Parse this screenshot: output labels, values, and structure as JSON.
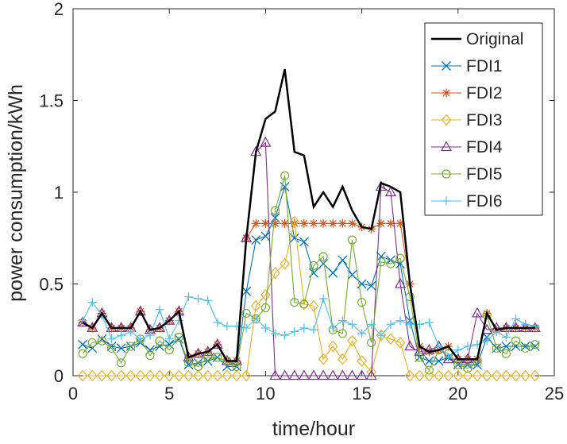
{
  "chart_data": {
    "type": "line",
    "title": "",
    "xlabel": "time/hour",
    "ylabel": "power consumption/kWh",
    "xlim": [
      0,
      25
    ],
    "ylim": [
      0,
      2
    ],
    "xticks": [
      0,
      5,
      10,
      15,
      20,
      25
    ],
    "yticks": [
      0,
      0.5,
      1,
      1.5,
      2
    ],
    "xtick_labels": [
      "0",
      "5",
      "10",
      "15",
      "20",
      "25"
    ],
    "ytick_labels": [
      "0",
      "0.5",
      "1",
      "1.5",
      "2"
    ],
    "grid": false,
    "legend_position": "top-right",
    "x": [
      0.5,
      1.0,
      1.5,
      2.0,
      2.5,
      3.0,
      3.5,
      4.0,
      4.5,
      5.0,
      5.5,
      6.0,
      6.5,
      7.0,
      7.5,
      8.0,
      8.5,
      9.0,
      9.5,
      10.0,
      10.5,
      11.0,
      11.5,
      12.0,
      12.5,
      13.0,
      13.5,
      14.0,
      14.5,
      15.0,
      15.5,
      16.0,
      16.5,
      17.0,
      17.5,
      18.0,
      18.5,
      19.0,
      19.5,
      20.0,
      20.5,
      21.0,
      21.5,
      22.0,
      22.5,
      23.0,
      23.5,
      24.0
    ],
    "series": [
      {
        "name": "Original",
        "color": "#000000",
        "marker": "none",
        "values": [
          0.29,
          0.26,
          0.34,
          0.26,
          0.26,
          0.26,
          0.35,
          0.25,
          0.26,
          0.3,
          0.35,
          0.1,
          0.12,
          0.13,
          0.17,
          0.08,
          0.08,
          0.75,
          1.22,
          1.4,
          1.44,
          1.67,
          1.22,
          1.2,
          0.92,
          1.0,
          0.92,
          1.03,
          0.9,
          0.81,
          0.8,
          1.05,
          1.03,
          1.0,
          0.5,
          0.16,
          0.13,
          0.14,
          0.16,
          0.09,
          0.09,
          0.09,
          0.34,
          0.25,
          0.26,
          0.26,
          0.26,
          0.26
        ]
      },
      {
        "name": "FDI1",
        "color": "#0072BD",
        "marker": "x",
        "values": [
          0.17,
          0.15,
          0.2,
          0.16,
          0.15,
          0.16,
          0.18,
          0.14,
          0.16,
          0.17,
          0.2,
          0.06,
          0.07,
          0.08,
          0.1,
          0.05,
          0.05,
          0.46,
          0.74,
          0.76,
          0.86,
          1.03,
          0.75,
          0.73,
          0.56,
          0.61,
          0.56,
          0.63,
          0.55,
          0.5,
          0.49,
          0.65,
          0.63,
          0.61,
          0.3,
          0.1,
          0.08,
          0.08,
          0.1,
          0.06,
          0.06,
          0.06,
          0.21,
          0.15,
          0.16,
          0.16,
          0.16,
          0.16
        ]
      },
      {
        "name": "FDI2",
        "color": "#D95319",
        "marker": "*",
        "values": [
          0.29,
          0.26,
          0.34,
          0.26,
          0.26,
          0.26,
          0.35,
          0.25,
          0.26,
          0.3,
          0.35,
          0.1,
          0.12,
          0.13,
          0.17,
          0.08,
          0.08,
          0.75,
          0.83,
          0.83,
          0.83,
          0.83,
          0.83,
          0.83,
          0.83,
          0.83,
          0.83,
          0.83,
          0.83,
          0.81,
          0.8,
          0.83,
          0.83,
          0.83,
          0.5,
          0.16,
          0.13,
          0.14,
          0.16,
          0.09,
          0.09,
          0.09,
          0.34,
          0.25,
          0.26,
          0.26,
          0.26,
          0.26
        ]
      },
      {
        "name": "FDI3",
        "color": "#EDB120",
        "marker": "diamond",
        "values": [
          0,
          0,
          0,
          0,
          0,
          0,
          0,
          0,
          0,
          0,
          0,
          0,
          0,
          0,
          0,
          0,
          0,
          0,
          0.38,
          0.44,
          0.56,
          0.61,
          0.84,
          0.39,
          0.38,
          0.09,
          0.16,
          0.09,
          0.19,
          0.08,
          0.02,
          0.22,
          0.2,
          0.18,
          0,
          0,
          0,
          0,
          0,
          0,
          0,
          0,
          0,
          0,
          0,
          0,
          0,
          0
        ]
      },
      {
        "name": "FDI4",
        "color": "#7E2F8E",
        "marker": "triangle",
        "values": [
          0.29,
          0.26,
          0.34,
          0.26,
          0.26,
          0.26,
          0.35,
          0.25,
          0.26,
          0.3,
          0.35,
          0.1,
          0.12,
          0.13,
          0.17,
          0.08,
          0.08,
          0.75,
          1.22,
          1.27,
          0,
          0,
          0,
          0,
          0,
          0,
          0,
          0,
          0,
          0,
          0,
          1.03,
          1.0,
          0.5,
          0.16,
          0.13,
          0.14,
          0.16,
          0.09,
          0.09,
          0.09,
          0.34,
          0.25,
          0.26,
          0.26,
          0.26,
          0.26,
          0.26
        ]
      },
      {
        "name": "FDI5",
        "color": "#77AC30",
        "marker": "circle",
        "values": [
          0.12,
          0.18,
          0.19,
          0.15,
          0.07,
          0.16,
          0.2,
          0.11,
          0.19,
          0.14,
          0.21,
          0.07,
          0.05,
          0.1,
          0.1,
          0.08,
          0.05,
          0.34,
          0.31,
          0.37,
          0.9,
          1.09,
          0.4,
          0.39,
          0.6,
          0.65,
          0.25,
          0.23,
          0.74,
          0.4,
          0.18,
          0.62,
          0.61,
          0.64,
          0.43,
          0.1,
          0.03,
          0.14,
          0.12,
          0.06,
          0.04,
          0.07,
          0.33,
          0.15,
          0.12,
          0.19,
          0.15,
          0.17
        ]
      },
      {
        "name": "FDI6",
        "color": "#4DBEEE",
        "marker": "plus",
        "values": [
          0.3,
          0.4,
          0.33,
          0.2,
          0.22,
          0.24,
          0.2,
          0.22,
          0.36,
          0.2,
          0.3,
          0.43,
          0.42,
          0.41,
          0.29,
          0.27,
          0.27,
          0.26,
          0.31,
          0.26,
          0.23,
          0.22,
          0.24,
          0.26,
          0.25,
          0.42,
          0.26,
          0.3,
          0.28,
          0.23,
          0.28,
          0.22,
          0.28,
          0.3,
          0.28,
          0.28,
          0.29,
          0.16,
          0.1,
          0.14,
          0.16,
          0.17,
          0.19,
          0.24,
          0.21,
          0.31,
          0.28,
          0.27
        ]
      }
    ]
  }
}
